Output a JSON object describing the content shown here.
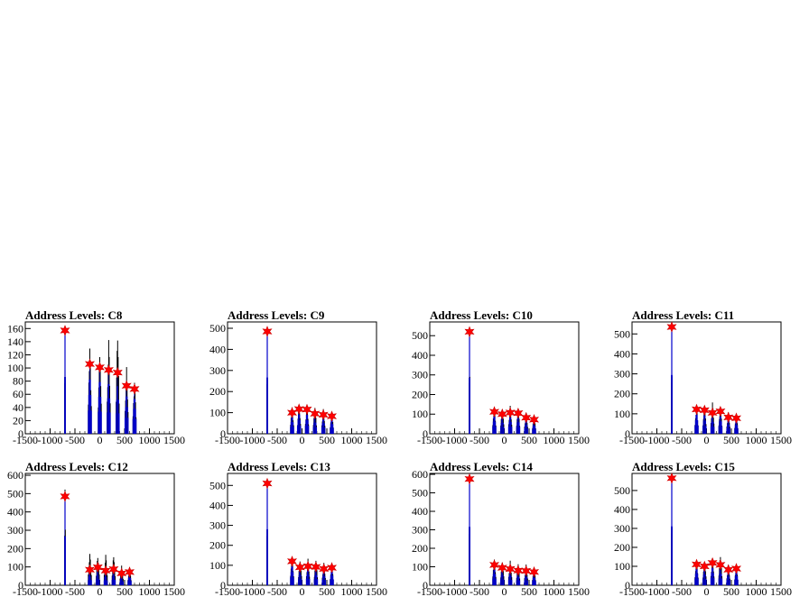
{
  "colors": {
    "background": "#ffffff",
    "histogram": "#0000cc",
    "raw": "#000000",
    "marker": "#ff0000",
    "frame": "#000000"
  },
  "marker_icon": "star-marker",
  "chart_data": [
    {
      "type": "bar",
      "title": "Address Levels: C8",
      "xlabel": "",
      "ylabel": "",
      "xlim": [
        -1500,
        1500
      ],
      "ylim": [
        0,
        170
      ],
      "x_ticks": [
        "-1500",
        "-1000",
        "-500",
        "0",
        "500",
        "1000",
        "1500"
      ],
      "y_ticks": [
        "0",
        "20",
        "40",
        "60",
        "80",
        "100",
        "120",
        "140",
        "160"
      ],
      "peaks": [
        {
          "x": -700,
          "y": 157,
          "raw": 165
        },
        {
          "x": -200,
          "y": 106,
          "raw": 140
        },
        {
          "x": 0,
          "y": 101,
          "raw": 137
        },
        {
          "x": 180,
          "y": 97,
          "raw": 150
        },
        {
          "x": 360,
          "y": 93,
          "raw": 162
        },
        {
          "x": 540,
          "y": 73,
          "raw": 104
        },
        {
          "x": 700,
          "y": 68,
          "raw": 86
        }
      ]
    },
    {
      "type": "bar",
      "title": "Address Levels: C9",
      "xlabel": "",
      "ylabel": "",
      "xlim": [
        -1500,
        1500
      ],
      "ylim": [
        0,
        530
      ],
      "x_ticks": [
        "-1500",
        "-1000",
        "-500",
        "0",
        "500",
        "1000",
        "1500"
      ],
      "y_ticks": [
        "0",
        "100",
        "200",
        "300",
        "400",
        "500"
      ],
      "peaks": [
        {
          "x": -700,
          "y": 485,
          "raw": 505
        },
        {
          "x": -200,
          "y": 100,
          "raw": 135
        },
        {
          "x": -60,
          "y": 117,
          "raw": 140
        },
        {
          "x": 100,
          "y": 115,
          "raw": 145
        },
        {
          "x": 260,
          "y": 95,
          "raw": 140
        },
        {
          "x": 430,
          "y": 90,
          "raw": 120
        },
        {
          "x": 600,
          "y": 83,
          "raw": 100
        }
      ]
    },
    {
      "type": "bar",
      "title": "Address Levels: C10",
      "xlabel": "",
      "ylabel": "",
      "xlim": [
        -1500,
        1500
      ],
      "ylim": [
        0,
        570
      ],
      "x_ticks": [
        "-1500",
        "-1000",
        "-500",
        "0",
        "500",
        "1000",
        "1500"
      ],
      "y_ticks": [
        "0",
        "100",
        "200",
        "300",
        "400",
        "500"
      ],
      "peaks": [
        {
          "x": -700,
          "y": 520,
          "raw": 555
        },
        {
          "x": -200,
          "y": 112,
          "raw": 140
        },
        {
          "x": -40,
          "y": 100,
          "raw": 145
        },
        {
          "x": 120,
          "y": 108,
          "raw": 150
        },
        {
          "x": 280,
          "y": 105,
          "raw": 140
        },
        {
          "x": 440,
          "y": 82,
          "raw": 110
        },
        {
          "x": 600,
          "y": 72,
          "raw": 95
        }
      ]
    },
    {
      "type": "bar",
      "title": "Address Levels: C11",
      "xlabel": "",
      "ylabel": "",
      "xlim": [
        -1500,
        1500
      ],
      "ylim": [
        0,
        560
      ],
      "x_ticks": [
        "-1500",
        "-1000",
        "-500",
        "0",
        "500",
        "1000",
        "1500"
      ],
      "y_ticks": [
        "0",
        "100",
        "200",
        "300",
        "400",
        "500"
      ],
      "peaks": [
        {
          "x": -700,
          "y": 535,
          "raw": 550
        },
        {
          "x": -200,
          "y": 122,
          "raw": 140
        },
        {
          "x": -40,
          "y": 118,
          "raw": 145
        },
        {
          "x": 120,
          "y": 105,
          "raw": 165
        },
        {
          "x": 280,
          "y": 112,
          "raw": 140
        },
        {
          "x": 440,
          "y": 82,
          "raw": 110
        },
        {
          "x": 600,
          "y": 78,
          "raw": 95
        }
      ]
    },
    {
      "type": "bar",
      "title": "Address Levels: C12",
      "xlabel": "",
      "ylabel": "",
      "xlim": [
        -1500,
        1500
      ],
      "ylim": [
        0,
        610
      ],
      "x_ticks": [
        "-1500",
        "-1000",
        "-500",
        "0",
        "500",
        "1000",
        "1500"
      ],
      "y_ticks": [
        "0",
        "100",
        "200",
        "300",
        "400",
        "500",
        "600"
      ],
      "peaks": [
        {
          "x": -700,
          "y": 485,
          "raw": 580
        },
        {
          "x": -200,
          "y": 85,
          "raw": 185
        },
        {
          "x": -40,
          "y": 98,
          "raw": 175
        },
        {
          "x": 120,
          "y": 80,
          "raw": 175
        },
        {
          "x": 280,
          "y": 88,
          "raw": 175
        },
        {
          "x": 440,
          "y": 65,
          "raw": 110
        },
        {
          "x": 600,
          "y": 72,
          "raw": 95
        }
      ]
    },
    {
      "type": "bar",
      "title": "Address Levels: C13",
      "xlabel": "",
      "ylabel": "",
      "xlim": [
        -1500,
        1500
      ],
      "ylim": [
        0,
        560
      ],
      "x_ticks": [
        "-1500",
        "-1000",
        "-500",
        "0",
        "500",
        "1000",
        "1500"
      ],
      "y_ticks": [
        "0",
        "100",
        "200",
        "300",
        "400",
        "500"
      ],
      "peaks": [
        {
          "x": -700,
          "y": 510,
          "raw": 530
        },
        {
          "x": -200,
          "y": 120,
          "raw": 150
        },
        {
          "x": -40,
          "y": 90,
          "raw": 140
        },
        {
          "x": 120,
          "y": 95,
          "raw": 140
        },
        {
          "x": 280,
          "y": 92,
          "raw": 140
        },
        {
          "x": 440,
          "y": 82,
          "raw": 115
        },
        {
          "x": 600,
          "y": 88,
          "raw": 100
        }
      ]
    },
    {
      "type": "bar",
      "title": "Address Levels: C14",
      "xlabel": "",
      "ylabel": "",
      "xlim": [
        -1500,
        1500
      ],
      "ylim": [
        0,
        605
      ],
      "x_ticks": [
        "-1500",
        "-1000",
        "-500",
        "0",
        "500",
        "1000",
        "1500"
      ],
      "y_ticks": [
        "0",
        "100",
        "200",
        "300",
        "400",
        "500",
        "600"
      ],
      "peaks": [
        {
          "x": -700,
          "y": 575,
          "raw": 595
        },
        {
          "x": -200,
          "y": 110,
          "raw": 150
        },
        {
          "x": -40,
          "y": 95,
          "raw": 145
        },
        {
          "x": 120,
          "y": 88,
          "raw": 140
        },
        {
          "x": 280,
          "y": 80,
          "raw": 130
        },
        {
          "x": 440,
          "y": 78,
          "raw": 115
        },
        {
          "x": 600,
          "y": 72,
          "raw": 95
        }
      ]
    },
    {
      "type": "bar",
      "title": "Address Levels: C15",
      "xlabel": "",
      "ylabel": "",
      "xlim": [
        -1500,
        1500
      ],
      "ylim": [
        0,
        590
      ],
      "x_ticks": [
        "-1500",
        "-1000",
        "-500",
        "0",
        "500",
        "1000",
        "1500"
      ],
      "y_ticks": [
        "0",
        "100",
        "200",
        "300",
        "400",
        "500"
      ],
      "peaks": [
        {
          "x": -700,
          "y": 565,
          "raw": 585
        },
        {
          "x": -200,
          "y": 110,
          "raw": 135
        },
        {
          "x": -40,
          "y": 100,
          "raw": 140
        },
        {
          "x": 120,
          "y": 118,
          "raw": 150
        },
        {
          "x": 280,
          "y": 108,
          "raw": 170
        },
        {
          "x": 440,
          "y": 82,
          "raw": 110
        },
        {
          "x": 600,
          "y": 88,
          "raw": 100
        }
      ]
    }
  ]
}
